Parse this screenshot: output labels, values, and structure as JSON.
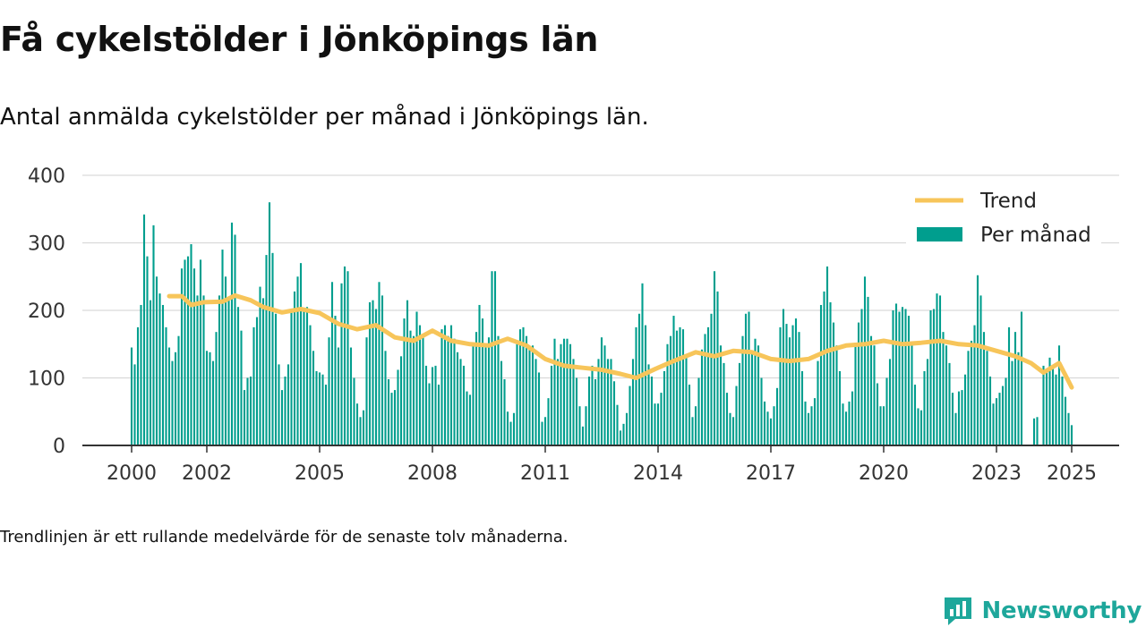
{
  "title": "Få cykelstölder i Jönköpings län",
  "subtitle": "Antal anmälda cykelstölder per månad i Jönköpings län.",
  "note": "Trendlinjen är ett rullande medelvärde för de senaste tolv månaderna.",
  "brand": {
    "name": "Newsworthy",
    "icon": "newsworthy-chart-bubble-icon"
  },
  "colors": {
    "bars": "#009e8e",
    "trend": "#f7c55a",
    "grid": "#d9d9d9",
    "axis": "#333333",
    "brand": "#1ea79b"
  },
  "chart_data": {
    "type": "bar",
    "start": "2000-01",
    "grid": true,
    "legend_position": "top-right",
    "y_ticks": [
      0,
      100,
      200,
      300,
      400
    ],
    "ylim": [
      0,
      400
    ],
    "x_ticks": [
      "2000",
      "2002",
      "2005",
      "2008",
      "2011",
      "2014",
      "2017",
      "2020",
      "2023",
      "2025"
    ],
    "series": [
      {
        "name": "Per månad",
        "type": "bar",
        "values": [
          145,
          120,
          175,
          208,
          342,
          280,
          215,
          326,
          250,
          225,
          208,
          175,
          145,
          125,
          138,
          162,
          262,
          275,
          280,
          298,
          262,
          222,
          275,
          222,
          140,
          138,
          125,
          168,
          222,
          290,
          250,
          215,
          330,
          312,
          205,
          170,
          82,
          100,
          102,
          175,
          190,
          235,
          218,
          282,
          360,
          285,
          195,
          120,
          82,
          102,
          120,
          200,
          228,
          250,
          270,
          198,
          205,
          178,
          140,
          110,
          108,
          105,
          90,
          160,
          242,
          192,
          145,
          240,
          265,
          258,
          145,
          100,
          62,
          42,
          52,
          160,
          212,
          215,
          202,
          242,
          222,
          140,
          98,
          78,
          82,
          112,
          132,
          188,
          215,
          170,
          162,
          198,
          178,
          160,
          118,
          92,
          116,
          118,
          90,
          172,
          178,
          162,
          178,
          158,
          138,
          128,
          118,
          80,
          75,
          152,
          168,
          208,
          188,
          145,
          160,
          258,
          258,
          162,
          125,
          98,
          50,
          35,
          48,
          150,
          172,
          175,
          162,
          145,
          148,
          128,
          108,
          35,
          42,
          70,
          118,
          158,
          128,
          150,
          158,
          158,
          150,
          128,
          100,
          58,
          28,
          58,
          102,
          118,
          98,
          128,
          160,
          148,
          128,
          128,
          95,
          60,
          22,
          32,
          48,
          88,
          128,
          175,
          195,
          240,
          178,
          120,
          102,
          62,
          62,
          78,
          110,
          150,
          162,
          192,
          170,
          175,
          172,
          130,
          90,
          42,
          58,
          100,
          142,
          165,
          175,
          195,
          258,
          228,
          148,
          122,
          78,
          48,
          42,
          88,
          122,
          162,
          195,
          198,
          140,
          158,
          148,
          100,
          65,
          50,
          40,
          58,
          85,
          175,
          202,
          180,
          160,
          178,
          188,
          168,
          110,
          65,
          48,
          58,
          70,
          125,
          208,
          228,
          265,
          212,
          182,
          148,
          110,
          62,
          50,
          65,
          80,
          152,
          182,
          202,
          250,
          220,
          162,
          148,
          92,
          58,
          58,
          100,
          128,
          200,
          210,
          198,
          205,
          202,
          192,
          150,
          90,
          55,
          52,
          110,
          128,
          200,
          202,
          225,
          222,
          168,
          148,
          122,
          78,
          48,
          80,
          82,
          105,
          140,
          155,
          178,
          252,
          222,
          168,
          140,
          102,
          62,
          70,
          78,
          88,
          100,
          175,
          125,
          168,
          138,
          198,
          0,
          0,
          0,
          40,
          42,
          0,
          118,
          108,
          130,
          118,
          105,
          148,
          102,
          72,
          48,
          30
        ]
      },
      {
        "name": "Trend",
        "type": "line",
        "values": [
          {
            "x": "2001-01",
            "y": 221
          },
          {
            "x": "2001-05",
            "y": 221
          },
          {
            "x": "2001-08",
            "y": 208
          },
          {
            "x": "2001-12",
            "y": 212
          },
          {
            "x": "2002-06",
            "y": 213
          },
          {
            "x": "2002-10",
            "y": 222
          },
          {
            "x": "2003-03",
            "y": 215
          },
          {
            "x": "2003-07",
            "y": 205
          },
          {
            "x": "2004-01",
            "y": 197
          },
          {
            "x": "2004-07",
            "y": 202
          },
          {
            "x": "2005-01",
            "y": 196
          },
          {
            "x": "2005-07",
            "y": 180
          },
          {
            "x": "2006-01",
            "y": 172
          },
          {
            "x": "2006-07",
            "y": 178
          },
          {
            "x": "2007-01",
            "y": 160
          },
          {
            "x": "2007-07",
            "y": 155
          },
          {
            "x": "2008-01",
            "y": 170
          },
          {
            "x": "2008-07",
            "y": 155
          },
          {
            "x": "2009-01",
            "y": 150
          },
          {
            "x": "2009-07",
            "y": 148
          },
          {
            "x": "2010-01",
            "y": 158
          },
          {
            "x": "2010-07",
            "y": 148
          },
          {
            "x": "2011-01",
            "y": 128
          },
          {
            "x": "2011-07",
            "y": 118
          },
          {
            "x": "2012-01",
            "y": 115
          },
          {
            "x": "2012-07",
            "y": 112
          },
          {
            "x": "2013-01",
            "y": 106
          },
          {
            "x": "2013-06",
            "y": 100
          },
          {
            "x": "2013-12",
            "y": 113
          },
          {
            "x": "2014-06",
            "y": 125
          },
          {
            "x": "2015-01",
            "y": 138
          },
          {
            "x": "2015-07",
            "y": 132
          },
          {
            "x": "2016-01",
            "y": 140
          },
          {
            "x": "2016-07",
            "y": 138
          },
          {
            "x": "2017-01",
            "y": 128
          },
          {
            "x": "2017-07",
            "y": 125
          },
          {
            "x": "2018-01",
            "y": 128
          },
          {
            "x": "2018-07",
            "y": 140
          },
          {
            "x": "2019-01",
            "y": 148
          },
          {
            "x": "2019-07",
            "y": 150
          },
          {
            "x": "2020-01",
            "y": 155
          },
          {
            "x": "2020-07",
            "y": 150
          },
          {
            "x": "2021-01",
            "y": 152
          },
          {
            "x": "2021-07",
            "y": 155
          },
          {
            "x": "2022-01",
            "y": 150
          },
          {
            "x": "2022-07",
            "y": 148
          },
          {
            "x": "2023-01",
            "y": 140
          },
          {
            "x": "2023-07",
            "y": 132
          },
          {
            "x": "2023-12",
            "y": 122
          },
          {
            "x": "2024-04",
            "y": 108
          },
          {
            "x": "2024-09",
            "y": 122
          },
          {
            "x": "2025-01",
            "y": 86
          }
        ]
      }
    ]
  }
}
